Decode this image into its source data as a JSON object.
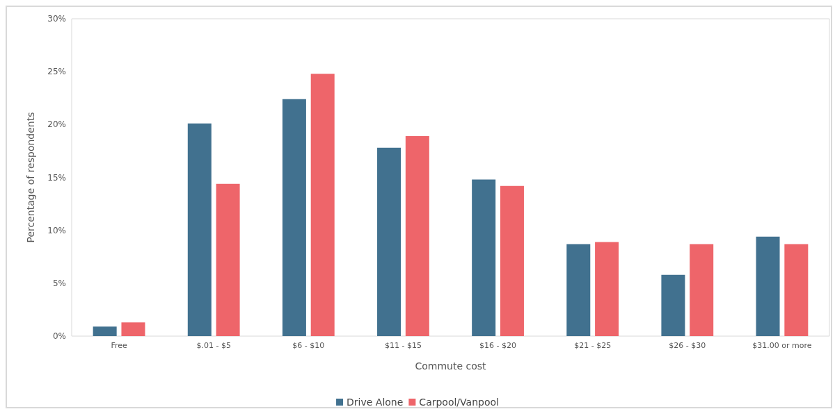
{
  "chart_data": {
    "type": "bar",
    "xlabel": "Commute cost",
    "ylabel": "Percentage of respondents",
    "categories": [
      "Free",
      "$.01 - $5",
      "$6 - $10",
      "$11 - $15",
      "$16 - $20",
      "$21 - $25",
      "$26 - $30",
      "$31.00 or more"
    ],
    "series": [
      {
        "name": "Drive Alone",
        "color": "#41718f",
        "values": [
          0.9,
          20.1,
          22.4,
          17.8,
          14.8,
          8.7,
          5.8,
          9.4
        ]
      },
      {
        "name": "Carpool/Vanpool",
        "color": "#ee656a",
        "values": [
          1.3,
          14.4,
          24.8,
          18.9,
          14.2,
          8.9,
          8.7,
          8.7
        ]
      }
    ],
    "ylim": [
      0,
      30
    ],
    "yticks": [
      {
        "value": 0,
        "label": "0%"
      },
      {
        "value": 5,
        "label": "5%"
      },
      {
        "value": 10,
        "label": "10%"
      },
      {
        "value": 15,
        "label": "15%"
      },
      {
        "value": 20,
        "label": "20%"
      },
      {
        "value": 25,
        "label": "25%"
      },
      {
        "value": 30,
        "label": "30%"
      }
    ],
    "grid": false,
    "legend": "bottom"
  }
}
